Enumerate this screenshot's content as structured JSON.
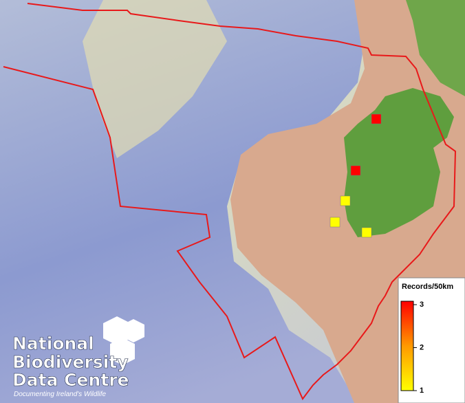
{
  "logo": {
    "line1": "National",
    "line2": "Biodiversity",
    "line3": "Data Centre",
    "tagline": "Documenting Ireland's Wildlife"
  },
  "legend": {
    "title": "Records/50km",
    "range": [
      1,
      3
    ],
    "ticks": [
      3,
      2,
      1
    ],
    "low_color": "#ffff00",
    "mid_color": "#ff9900",
    "high_color": "#ff0000"
  },
  "records": [
    3,
    3,
    1,
    1,
    1
  ]
}
